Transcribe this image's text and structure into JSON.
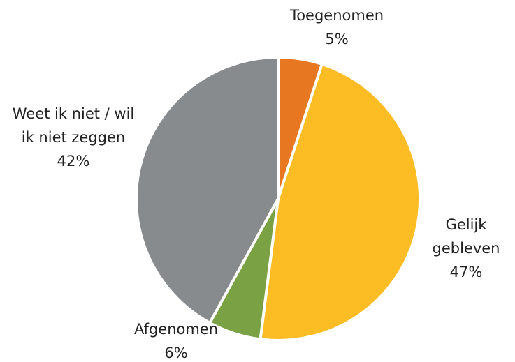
{
  "chart_data": {
    "type": "pie",
    "categories": [
      "Toegenomen",
      "Gelijk gebleven",
      "Afgenomen",
      "Weet ik niet / wil ik niet zeggen"
    ],
    "values": [
      5,
      47,
      6,
      42
    ],
    "value_labels": [
      "5%",
      "47%",
      "6%",
      "42%"
    ],
    "colors": [
      "#e87722",
      "#fbbc24",
      "#7aa143",
      "#878b8e"
    ]
  }
}
